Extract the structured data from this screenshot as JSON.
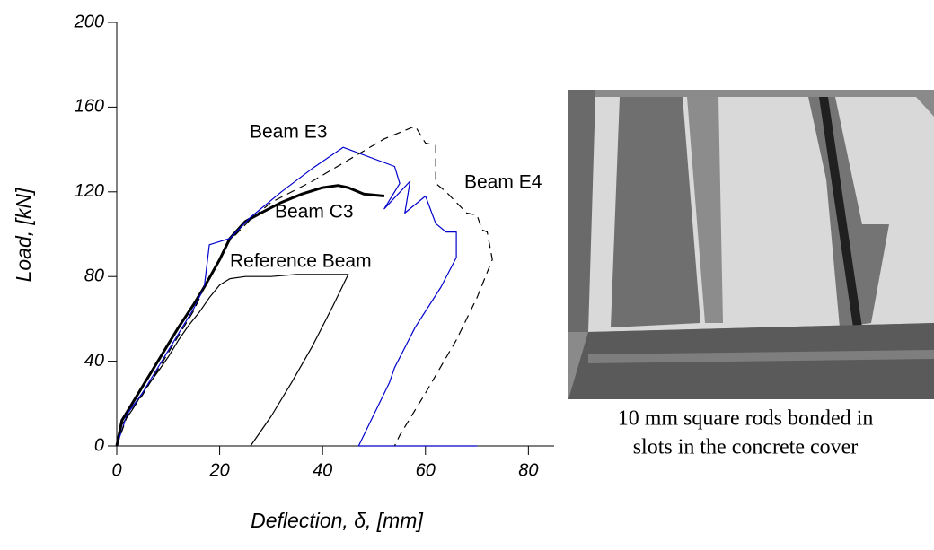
{
  "chart_data": {
    "type": "line",
    "xlabel": "Deflection, δ, [mm]",
    "ylabel": "Load, [kN]",
    "xlim": [
      0,
      85
    ],
    "xticks": [
      0,
      20,
      40,
      60,
      80
    ],
    "ylim": [
      0,
      200
    ],
    "yticks": [
      0,
      40,
      80,
      120,
      160,
      200
    ],
    "series": [
      {
        "name": "Reference Beam",
        "color": "#000000",
        "width": 1.2,
        "x": [
          0,
          1,
          3,
          5,
          8,
          10,
          12,
          14,
          16,
          18,
          20,
          22,
          25,
          30,
          35,
          40,
          45,
          42,
          38,
          34,
          30,
          26
        ],
        "values": [
          0,
          10,
          17,
          25,
          35,
          42,
          50,
          57,
          63,
          70,
          76,
          79,
          80,
          80,
          81,
          81,
          81,
          66,
          47,
          30,
          14,
          0
        ]
      },
      {
        "name": "Beam C3",
        "color": "#000000",
        "width": 3,
        "x": [
          0,
          1,
          3,
          5,
          8,
          10,
          12,
          15,
          17,
          20,
          22,
          25,
          28,
          32,
          36,
          40,
          43,
          45,
          48,
          52
        ],
        "values": [
          0,
          12,
          20,
          28,
          40,
          48,
          56,
          67,
          75,
          88,
          98,
          106,
          110,
          115,
          119,
          122,
          123,
          122,
          119,
          118
        ]
      },
      {
        "name": "Beam E3",
        "color": "#0000cc",
        "width": 1.2,
        "x": [
          0,
          2,
          5,
          10,
          15,
          17,
          18,
          22,
          26,
          32,
          38,
          44,
          54,
          55,
          52,
          57,
          56,
          60,
          62,
          64,
          66,
          66,
          63,
          58,
          54,
          53,
          47,
          70
        ],
        "values": [
          0,
          15,
          25,
          45,
          65,
          75,
          95,
          98,
          108,
          120,
          131,
          141,
          132,
          124,
          112,
          125,
          110,
          118,
          105,
          101,
          101,
          89,
          75,
          56,
          37,
          30,
          0,
          0
        ]
      },
      {
        "name": "Beam E4",
        "color": "#000000",
        "width": 1.2,
        "dash": true,
        "x": [
          0,
          2,
          5,
          10,
          15,
          18,
          22,
          26,
          30,
          38,
          45,
          52,
          58,
          60,
          62,
          62,
          64,
          66,
          68,
          70,
          71,
          72,
          73,
          70,
          66,
          60,
          55,
          54
        ],
        "values": [
          0,
          14,
          24,
          44,
          64,
          80,
          97,
          107,
          115,
          125,
          135,
          145,
          151,
          143,
          142,
          124,
          120,
          115,
          110,
          109,
          102,
          101,
          88,
          70,
          50,
          25,
          5,
          0
        ]
      }
    ],
    "annotations": [
      "Beam E3",
      "Beam E4",
      "Beam C3",
      "Reference Beam"
    ]
  },
  "caption": [
    "10 mm square rods bonded in",
    "slots in the concrete cover"
  ]
}
